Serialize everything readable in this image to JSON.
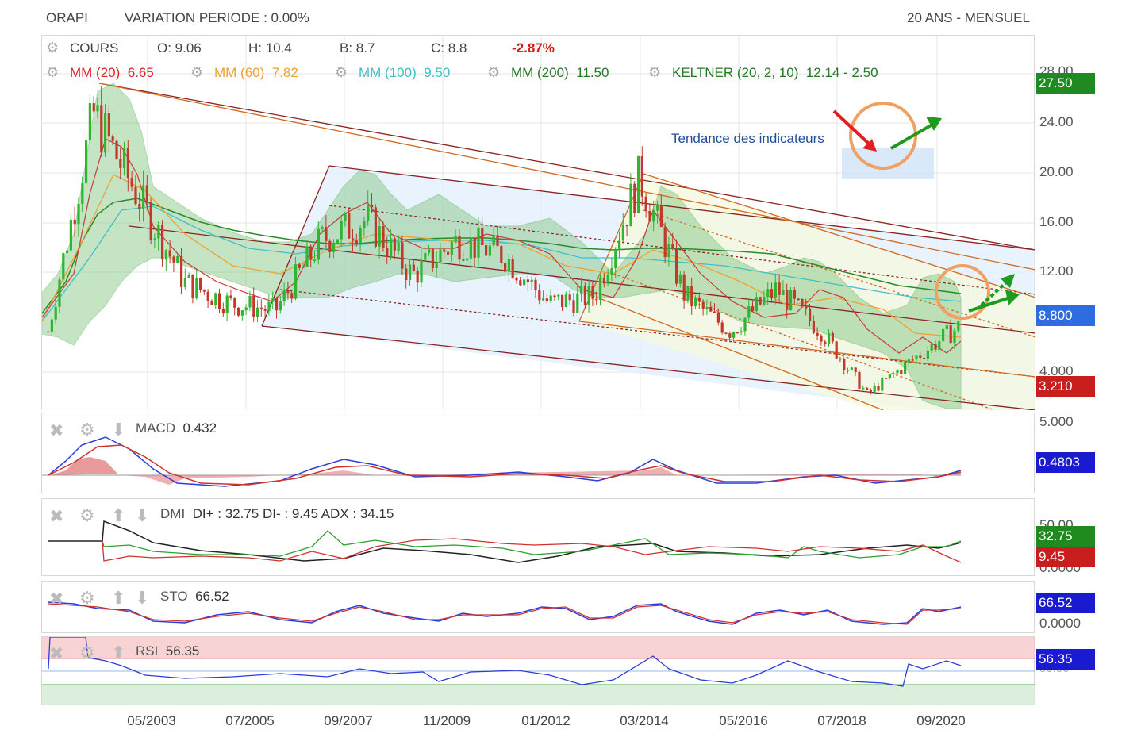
{
  "header": {
    "ticker": "ORAPI",
    "variation": "VARIATION PERIODE : 0.00%",
    "period": "20 ANS - MENSUEL"
  },
  "price": {
    "cours_label": "COURS",
    "o": "O: 9.06",
    "h": "H: 10.4",
    "b": "B: 8.7",
    "c": "C: 8.8",
    "change": "-2.87%",
    "mm20_label": "MM (20)",
    "mm20_value": "6.65",
    "mm60_label": "MM (60)",
    "mm60_value": "7.82",
    "mm100_label": "MM (100)",
    "mm100_value": "9.50",
    "mm200_label": "MM (200)",
    "mm200_value": "11.50",
    "keltner_label": "KELTNER (20, 2, 10)",
    "keltner_value": "12.14 - 2.50",
    "annotation": "Tendance des indicateurs",
    "y_ticks": [
      "28.00",
      "24.00",
      "20.00",
      "16.00",
      "12.00",
      "4.000"
    ],
    "tags": {
      "high": "27.50",
      "last": "8.800",
      "low": "3.210"
    }
  },
  "macd": {
    "label": "MACD",
    "value": "0.432",
    "tick": "5.000",
    "tag": "0.4803"
  },
  "dmi": {
    "label": "DMI",
    "value": "DI+ : 32.75 DI- : 9.45 ADX : 34.15",
    "tick_top": "50.00",
    "tick_bottom": "0.0000",
    "tag_plus": "32.75",
    "tag_minus": "9.45"
  },
  "sto": {
    "label": "STO",
    "value": "66.52",
    "tick": "0.0000",
    "tag": "66.52"
  },
  "rsi": {
    "label": "RSI",
    "value": "56.35",
    "tag": "56.35",
    "tick_hidden": "50.00"
  },
  "x_axis": [
    "05/2003",
    "07/2005",
    "09/2007",
    "11/2009",
    "01/2012",
    "03/2014",
    "05/2016",
    "07/2018",
    "09/2020"
  ],
  "colors": {
    "up": "#2fb52f",
    "down": "#c0392b",
    "mm20": "#e03030",
    "mm60": "#f0a030",
    "mm100": "#40c0c8",
    "mm200": "#2a8a2a",
    "tag_green": "#1f8a1f",
    "tag_red": "#c81e1e",
    "tag_blue": "#2d6de0",
    "tag_navy": "#1a1ad0"
  },
  "chart_data": {
    "type": "line",
    "title": "ORAPI",
    "x": [
      "2001-01",
      "2002-01",
      "2003-01",
      "2004-01",
      "2005-01",
      "2006-01",
      "2007-01",
      "2008-01",
      "2009-01",
      "2010-01",
      "2011-01",
      "2012-01",
      "2013-01",
      "2014-01",
      "2015-01",
      "2016-01",
      "2017-01",
      "2018-01",
      "2019-01",
      "2020-01",
      "2020-12"
    ],
    "series": [
      {
        "name": "COURS",
        "values": [
          8.5,
          24.0,
          18.0,
          12.0,
          10.5,
          10.0,
          15.0,
          16.5,
          12.5,
          15.0,
          14.0,
          10.5,
          11.0,
          19.5,
          11.0,
          8.5,
          11.5,
          8.5,
          4.0,
          6.5,
          8.8
        ]
      },
      {
        "name": "MM (20)",
        "values": [
          8.0,
          18.0,
          19.0,
          14.0,
          11.0,
          10.5,
          13.0,
          15.5,
          14.0,
          14.5,
          14.5,
          12.0,
          11.0,
          15.0,
          14.0,
          10.0,
          10.5,
          9.5,
          6.0,
          5.5,
          6.65
        ]
      },
      {
        "name": "MM (200)",
        "values": [
          9.0,
          17.0,
          17.0,
          15.0,
          14.0,
          13.5,
          13.5,
          14.0,
          14.0,
          14.0,
          14.0,
          13.5,
          13.0,
          13.0,
          13.0,
          12.5,
          12.5,
          12.0,
          11.8,
          11.6,
          11.5
        ]
      }
    ],
    "ylim": [
      3,
      29
    ],
    "indicators": {
      "MACD": 0.432,
      "DI+": 32.75,
      "DI-": 9.45,
      "ADX": 34.15,
      "STO": 66.52,
      "RSI": 56.35
    }
  }
}
